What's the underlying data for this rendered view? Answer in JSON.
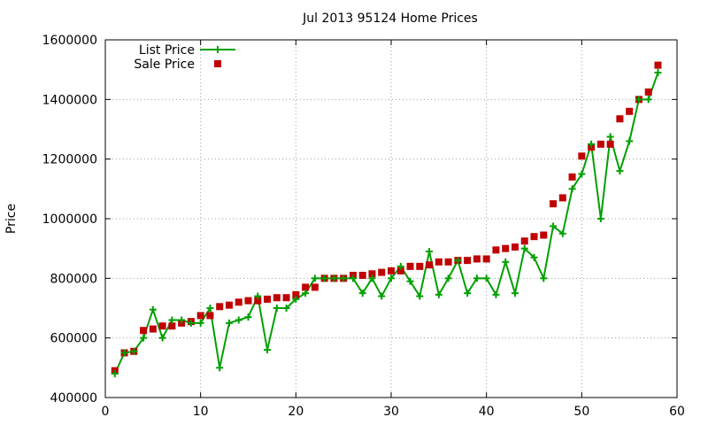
{
  "chart_data": {
    "type": "line",
    "title": "Jul 2013 95124 Home Prices",
    "xlabel": "",
    "ylabel": "Price",
    "xlim": [
      0,
      60
    ],
    "ylim": [
      400000,
      1600000
    ],
    "xticks": [
      0,
      10,
      20,
      30,
      40,
      50,
      60
    ],
    "yticks": [
      400000,
      600000,
      800000,
      1000000,
      1200000,
      1400000,
      1600000
    ],
    "xtick_labels": [
      "0",
      "10",
      "20",
      "30",
      "40",
      "50",
      "60"
    ],
    "ytick_labels": [
      "400000",
      "600000",
      "800000",
      "1000000",
      "1200000",
      "1400000",
      "1600000"
    ],
    "grid": true,
    "legend_position": "top-left",
    "x": [
      1,
      2,
      3,
      4,
      5,
      6,
      7,
      8,
      9,
      10,
      11,
      12,
      13,
      14,
      15,
      16,
      17,
      18,
      19,
      20,
      21,
      22,
      23,
      24,
      25,
      26,
      27,
      28,
      29,
      30,
      31,
      32,
      33,
      34,
      35,
      36,
      37,
      38,
      39,
      40,
      41,
      42,
      43,
      44,
      45,
      46,
      47,
      48,
      49,
      50,
      51,
      52,
      53,
      54,
      55,
      56,
      57,
      58
    ],
    "series": [
      {
        "name": "List Price",
        "color": "#00a000",
        "marker": "plus",
        "values": [
          480000,
          550000,
          555000,
          600000,
          695000,
          600000,
          660000,
          660000,
          650000,
          650000,
          700000,
          500000,
          650000,
          660000,
          670000,
          740000,
          560000,
          700000,
          700000,
          730000,
          750000,
          800000,
          800000,
          800000,
          800000,
          800000,
          750000,
          800000,
          740000,
          800000,
          840000,
          790000,
          740000,
          890000,
          745000,
          800000,
          860000,
          750000,
          800000,
          800000,
          745000,
          855000,
          750000,
          900000,
          870000,
          800000,
          975000,
          950000,
          1100000,
          1150000,
          1250000,
          1000000,
          1275000,
          1160000,
          1260000,
          1400000,
          1400000,
          1490000
        ]
      },
      {
        "name": "Sale Price",
        "color": "#c00000",
        "marker": "square",
        "values": [
          490000,
          550000,
          555000,
          625000,
          630000,
          640000,
          640000,
          650000,
          655000,
          675000,
          675000,
          705000,
          710000,
          720000,
          725000,
          725000,
          730000,
          735000,
          735000,
          745000,
          770000,
          770000,
          800000,
          800000,
          800000,
          810000,
          810000,
          815000,
          820000,
          825000,
          825000,
          840000,
          840000,
          845000,
          855000,
          855000,
          860000,
          860000,
          865000,
          865000,
          895000,
          900000,
          905000,
          925000,
          940000,
          945000,
          1050000,
          1070000,
          1140000,
          1210000,
          1240000,
          1250000,
          1250000,
          1335000,
          1360000,
          1400000,
          1425000,
          1515000
        ]
      }
    ]
  }
}
